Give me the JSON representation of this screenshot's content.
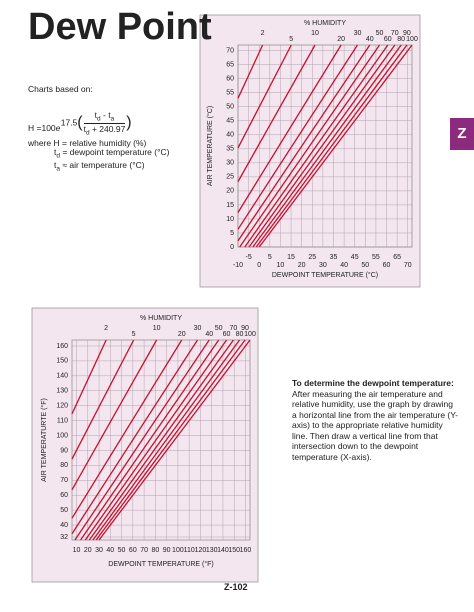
{
  "header": {
    "title": "Dew Point"
  },
  "tab": "Z",
  "formula": {
    "intro": "Charts based on:",
    "factor": "17.5",
    "numerator": [
      {
        "text": "t"
      },
      {
        "sub": "d"
      },
      {
        "text": " - t"
      },
      {
        "sub": "a"
      }
    ],
    "denominator": [
      {
        "text": "t"
      },
      {
        "sub": "d"
      },
      {
        "text": " + 240.97"
      }
    ],
    "equation": [
      {
        "text": "H =100"
      },
      {
        "italic": "e"
      }
    ],
    "where": [
      [
        {
          "text": "where H = relative humidity (%)"
        }
      ],
      [
        {
          "text": "t"
        },
        {
          "sub": "d"
        },
        {
          "text": " = dewpoint temperature (°C)"
        }
      ],
      [
        {
          "text": "t"
        },
        {
          "sub": "a"
        },
        {
          "text": " ≈ air temperature (°C)"
        }
      ]
    ]
  },
  "note": {
    "heading": "To determine the dewpoint temperature:",
    "body": " After measuring the air temperature and relative humidity, use the graph by drawing a horizontal line from the air temperature (Y-axis) to the appropriate relative humidity line. Then draw a vertical line from that intersection down to the dewpoint temperature (X-axis)."
  },
  "footer": "Z-102",
  "chart_data": [
    {
      "type": "line",
      "title": "% HUMIDITY",
      "xlabel": "DEWPOINT TEMPERATURE (°C)",
      "ylabel": "AIR TEMPERATURE (°C)",
      "xlim": [
        -10,
        72
      ],
      "ylim": [
        0,
        72
      ],
      "xticks": [
        -10,
        -5,
        0,
        5,
        10,
        15,
        20,
        25,
        30,
        35,
        40,
        45,
        50,
        55,
        60,
        65,
        70
      ],
      "yticks": [
        0,
        5,
        10,
        15,
        20,
        25,
        30,
        35,
        40,
        45,
        50,
        55,
        60,
        65,
        70
      ],
      "grid": true,
      "background": "#f3e6ef",
      "series": [
        {
          "name": "2",
          "color": "#c8102e",
          "x": [
            -10,
            1.6
          ],
          "values": [
            53,
            72
          ]
        },
        {
          "name": "5",
          "color": "#c8102e",
          "x": [
            -10,
            15.1
          ],
          "values": [
            35.3,
            72
          ]
        },
        {
          "name": "10",
          "color": "#c8102e",
          "x": [
            -10,
            26.3
          ],
          "values": [
            23.3,
            72
          ]
        },
        {
          "name": "20",
          "color": "#c8102e",
          "x": [
            -10,
            38.6
          ],
          "values": [
            12.3,
            72
          ]
        },
        {
          "name": "30",
          "color": "#c8102e",
          "x": [
            -10,
            46.3
          ],
          "values": [
            6.3,
            72
          ]
        },
        {
          "name": "40",
          "color": "#c8102e",
          "x": [
            -10,
            52.1
          ],
          "values": [
            2.2,
            72
          ]
        },
        {
          "name": "50",
          "color": "#c8102e",
          "x": [
            -9.2,
            56.7
          ],
          "values": [
            0,
            72
          ]
        },
        {
          "name": "60",
          "color": "#c8102e",
          "x": [
            -6.8,
            60.6
          ],
          "values": [
            0,
            72
          ]
        },
        {
          "name": "70",
          "color": "#c8102e",
          "x": [
            -4.8,
            63.9
          ],
          "values": [
            0,
            72
          ]
        },
        {
          "name": "80",
          "color": "#c8102e",
          "x": [
            -3,
            66.9
          ],
          "values": [
            0,
            72
          ]
        },
        {
          "name": "90",
          "color": "#c8102e",
          "x": [
            -1.4,
            69.6
          ],
          "values": [
            0,
            72
          ]
        },
        {
          "name": "100",
          "color": "#c8102e",
          "x": [
            0,
            72
          ],
          "values": [
            0,
            72
          ]
        }
      ]
    },
    {
      "type": "line",
      "title": "% HUMIDITY",
      "xlabel": "DEWPOINT TEMPERATURE (°F)",
      "ylabel": "AIR TEMPERATURTE (°F)",
      "xlim": [
        6,
        164
      ],
      "ylim": [
        30,
        164
      ],
      "xticks": [
        10,
        20,
        30,
        40,
        50,
        60,
        70,
        80,
        90,
        100,
        110,
        120,
        130,
        140,
        150,
        160
      ],
      "yticks": [
        32,
        40,
        50,
        60,
        70,
        80,
        90,
        100,
        110,
        120,
        130,
        140,
        150,
        160
      ],
      "grid": true,
      "background": "#f3e6ef",
      "series": [
        {
          "name": "2",
          "color": "#c8102e",
          "x": [
            6,
            36.3
          ],
          "values": [
            114.5,
            164
          ]
        },
        {
          "name": "5",
          "color": "#c8102e",
          "x": [
            6,
            60.7
          ],
          "values": [
            84.2,
            164
          ]
        },
        {
          "name": "10",
          "color": "#c8102e",
          "x": [
            6,
            81.1
          ],
          "values": [
            63.6,
            164
          ]
        },
        {
          "name": "20",
          "color": "#c8102e",
          "x": [
            6,
            103.4
          ],
          "values": [
            44.6,
            164
          ]
        },
        {
          "name": "30",
          "color": "#c8102e",
          "x": [
            6,
            117.4
          ],
          "values": [
            34.2,
            164
          ]
        },
        {
          "name": "40",
          "color": "#c8102e",
          "x": [
            8.6,
            127.8
          ],
          "values": [
            30,
            164
          ]
        },
        {
          "name": "50",
          "color": "#c8102e",
          "x": [
            13.6,
            136.2
          ],
          "values": [
            30,
            164
          ]
        },
        {
          "name": "60",
          "color": "#c8102e",
          "x": [
            17.8,
            143.2
          ],
          "values": [
            30,
            164
          ]
        },
        {
          "name": "70",
          "color": "#c8102e",
          "x": [
            21.4,
            149.3
          ],
          "values": [
            30,
            164
          ]
        },
        {
          "name": "80",
          "color": "#c8102e",
          "x": [
            24.6,
            154.7
          ],
          "values": [
            30,
            164
          ]
        },
        {
          "name": "90",
          "color": "#c8102e",
          "x": [
            27.4,
            159.6
          ],
          "values": [
            30,
            164
          ]
        },
        {
          "name": "100",
          "color": "#c8102e",
          "x": [
            30,
            164
          ],
          "values": [
            30,
            164
          ]
        }
      ]
    }
  ]
}
